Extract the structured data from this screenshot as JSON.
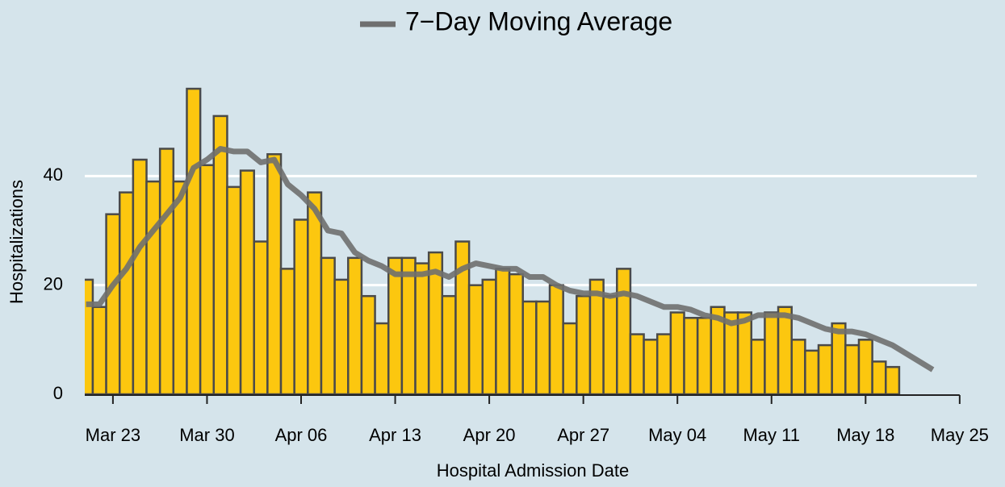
{
  "chart_data": {
    "type": "bar",
    "x_label": "Hospital Admission Date",
    "y_label": "Hospitalizations",
    "x": [
      "Mar 21",
      "Mar 22",
      "Mar 23",
      "Mar 24",
      "Mar 25",
      "Mar 26",
      "Mar 27",
      "Mar 28",
      "Mar 29",
      "Mar 30",
      "Mar 31",
      "Apr 01",
      "Apr 02",
      "Apr 03",
      "Apr 04",
      "Apr 05",
      "Apr 06",
      "Apr 07",
      "Apr 08",
      "Apr 09",
      "Apr 10",
      "Apr 11",
      "Apr 12",
      "Apr 13",
      "Apr 14",
      "Apr 15",
      "Apr 16",
      "Apr 17",
      "Apr 18",
      "Apr 19",
      "Apr 20",
      "Apr 21",
      "Apr 22",
      "Apr 23",
      "Apr 24",
      "Apr 25",
      "Apr 26",
      "Apr 27",
      "Apr 28",
      "Apr 29",
      "Apr 30",
      "May 01",
      "May 02",
      "May 03",
      "May 04",
      "May 05",
      "May 06",
      "May 07",
      "May 08",
      "May 09",
      "May 10",
      "May 11",
      "May 12",
      "May 13",
      "May 14",
      "May 15",
      "May 16",
      "May 17",
      "May 18",
      "May 19",
      "May 20",
      "May 21",
      "May 22",
      "May 23"
    ],
    "series": [
      {
        "type": "bar",
        "color": "#fcc70f",
        "values": [
          21,
          16,
          33,
          37,
          43,
          39,
          45,
          39,
          56,
          42,
          51,
          38,
          41,
          28,
          44,
          23,
          32,
          37,
          25,
          21,
          25,
          18,
          13,
          25,
          25,
          24,
          26,
          18,
          28,
          20,
          21,
          23,
          22,
          17,
          17,
          20,
          13,
          18,
          21,
          18,
          23,
          11,
          10,
          11,
          15,
          14,
          14,
          16,
          15,
          15,
          10,
          15,
          16,
          10,
          8,
          9,
          13,
          9,
          10,
          6,
          5,
          0,
          0,
          0
        ]
      },
      {
        "type": "line",
        "name": "7−Day Moving Average",
        "color": "#6f6f6f",
        "values": [
          16.5,
          16.5,
          20,
          23,
          27,
          30,
          33,
          36,
          41.5,
          43,
          45,
          44.5,
          44.5,
          42.5,
          43,
          38.5,
          36.5,
          34,
          30,
          29.5,
          26,
          24.5,
          23.5,
          22,
          22,
          22,
          22.5,
          21.5,
          23,
          24,
          23.5,
          23,
          23,
          21.5,
          21.5,
          20,
          19,
          18.5,
          18.5,
          18,
          18.5,
          18,
          17,
          16,
          16,
          15.5,
          14.5,
          14,
          13,
          13.5,
          14.5,
          14.5,
          14.5,
          14,
          13,
          12,
          11.5,
          11.5,
          11,
          10,
          9,
          7.5,
          6,
          4.5
        ]
      }
    ],
    "ylim": [
      0,
      60
    ],
    "yticks": [
      0,
      20,
      40
    ],
    "xticks": [
      "Mar 23",
      "Mar 30",
      "Apr 06",
      "Apr 13",
      "Apr 20",
      "Apr 27",
      "May 04",
      "May 11",
      "May 18",
      "May 25"
    ],
    "grid": true,
    "legend": "top"
  }
}
